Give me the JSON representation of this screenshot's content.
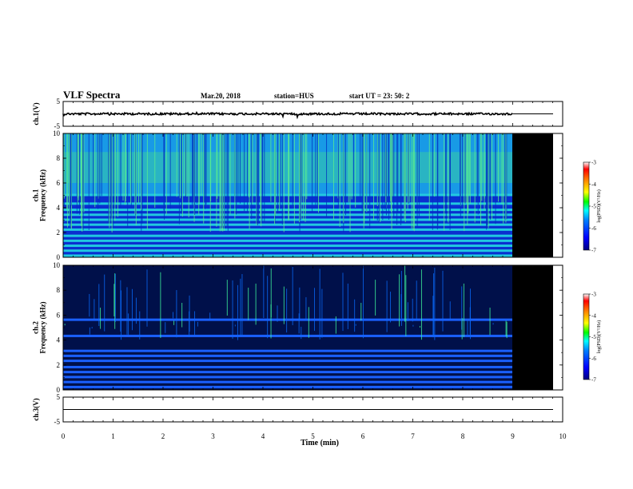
{
  "header": {
    "title": "VLF Spectra",
    "date": "Mar.20, 2018",
    "station": "station=HUS",
    "start": "start  UT =   23: 50: 2"
  },
  "chart_data": {
    "type": "heatmap",
    "xlabel": "Time (min)",
    "xlim": [
      0,
      10
    ],
    "x_ticks": [
      "0",
      "1",
      "2",
      "3",
      "4",
      "5",
      "6",
      "7",
      "8",
      "9",
      "10"
    ],
    "data_end_min": 9.0,
    "panels": [
      {
        "id": "ch1-waveform",
        "kind": "line",
        "ylabel": "ch.1(V)",
        "ylim": [
          -5,
          5
        ],
        "y_ticks": [
          "5",
          "-5"
        ],
        "baseline": 0
      },
      {
        "id": "ch1-spectrogram",
        "kind": "heatmap",
        "ylabel": "ch.1\nFrequency (kHz)",
        "ylim": [
          0,
          10
        ],
        "y_ticks": [
          "0",
          "2",
          "4",
          "6",
          "8",
          "10"
        ],
        "colorbar": {
          "label": "log(PSD)(V²/Hz)",
          "range": [
            -7,
            -3
          ],
          "ticks": [
            "-3",
            "-4",
            "-5",
            "-6",
            "-7"
          ]
        }
      },
      {
        "id": "ch2-spectrogram",
        "kind": "heatmap",
        "ylabel": "ch.2\nFrequency (kHz)",
        "ylim": [
          0,
          10
        ],
        "y_ticks": [
          "0",
          "2",
          "4",
          "6",
          "8",
          "10"
        ],
        "colorbar": {
          "label": "log(PSD)(V²/Hz)",
          "range": [
            -7,
            -3
          ],
          "ticks": [
            "-3",
            "-4",
            "-5",
            "-6",
            "-7"
          ]
        }
      },
      {
        "id": "ch3-waveform",
        "kind": "line",
        "ylabel": "ch.3(V)",
        "ylim": [
          -5,
          5
        ],
        "y_ticks": [
          "5",
          "-5"
        ],
        "baseline": 0
      }
    ],
    "ch1_bands_khz": [
      0.1,
      0.5,
      0.9,
      1.3,
      1.7,
      2.2,
      2.6,
      3.0,
      3.4,
      3.8,
      4.3,
      5.0
    ],
    "ch2_bands_khz": [
      0.2,
      0.6,
      1.0,
      1.4,
      1.8,
      2.3,
      2.7,
      3.1,
      4.3,
      5.6
    ]
  }
}
